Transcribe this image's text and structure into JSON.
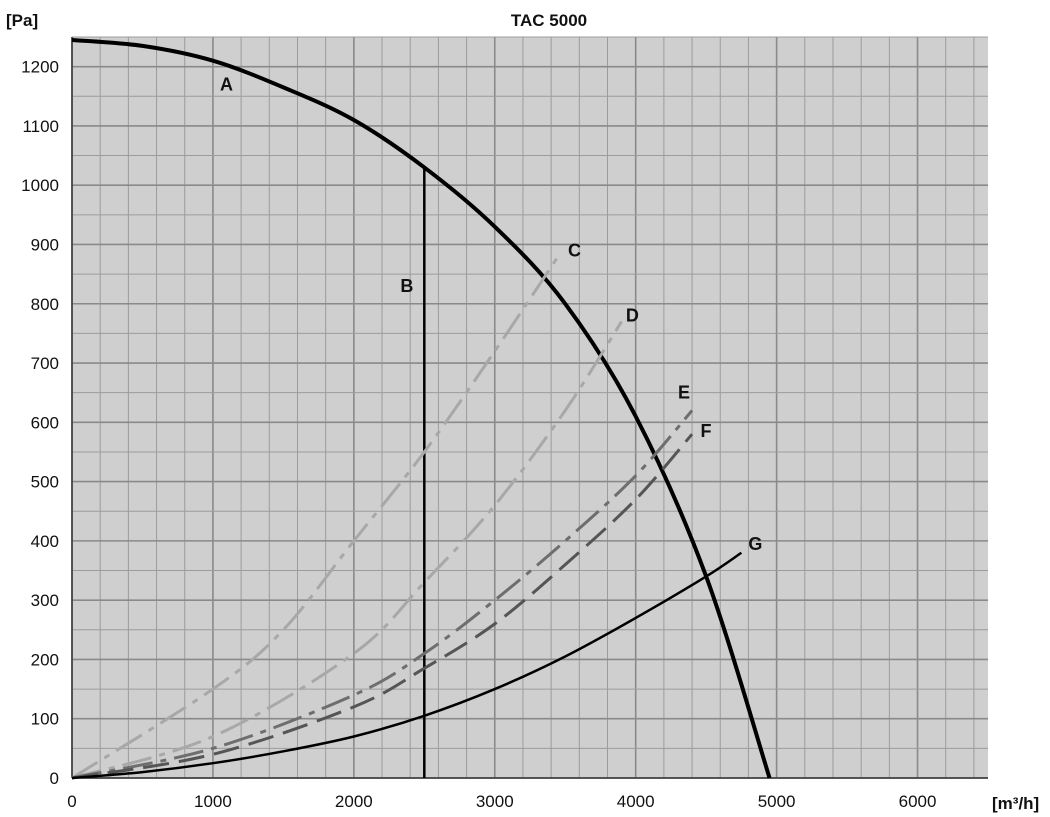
{
  "chart_data": {
    "type": "line",
    "title": "TAC 5000",
    "ylabel": "[Pa]",
    "xlabel": "[m³/h]",
    "xlim": [
      0,
      6500
    ],
    "ylim": [
      0,
      1250
    ],
    "x_ticks": [
      0,
      1000,
      2000,
      3000,
      4000,
      5000,
      6000
    ],
    "y_ticks": [
      0,
      100,
      200,
      300,
      400,
      500,
      600,
      700,
      800,
      900,
      1000,
      1100,
      1200
    ],
    "x_tick_labels": [
      "0",
      "1000",
      "2000",
      "3000",
      "4000",
      "5000",
      "6000"
    ],
    "y_tick_labels": [
      "0",
      "100",
      "200",
      "300",
      "400",
      "500",
      "600",
      "700",
      "800",
      "900",
      "1000",
      "1100",
      "1200"
    ],
    "grid": true,
    "grid_minor_x_step": 200,
    "grid_minor_y_step": 50,
    "background_color": "#cfcfcf",
    "series": [
      {
        "name": "A",
        "color": "#000000",
        "dash": "solid",
        "width": 4,
        "x": [
          0,
          500,
          1000,
          1500,
          2000,
          2500,
          3000,
          3500,
          4000,
          4500,
          4950
        ],
        "y": [
          1245,
          1235,
          1210,
          1165,
          1110,
          1030,
          930,
          800,
          610,
          340,
          0
        ]
      },
      {
        "name": "B",
        "color": "#000000",
        "dash": "solid",
        "width": 2.5,
        "x": [
          2500,
          2500
        ],
        "y": [
          0,
          1030
        ]
      },
      {
        "name": "C",
        "color": "#a8a8a8",
        "dash": "dashdot",
        "width": 3,
        "x": [
          0,
          1000,
          1500,
          2000,
          2500,
          3000,
          3450
        ],
        "y": [
          0,
          150,
          250,
          400,
          550,
          720,
          880
        ]
      },
      {
        "name": "D",
        "color": "#a8a8a8",
        "dash": "dashdot",
        "width": 3,
        "x": [
          0,
          1000,
          2000,
          2500,
          3000,
          3500,
          3900
        ],
        "y": [
          0,
          70,
          210,
          330,
          460,
          620,
          770
        ]
      },
      {
        "name": "E",
        "color": "#6e6e6e",
        "dash": "dashdot",
        "width": 3,
        "x": [
          0,
          1000,
          2000,
          2500,
          3000,
          3500,
          4000,
          4400
        ],
        "y": [
          0,
          50,
          140,
          210,
          300,
          400,
          510,
          620
        ]
      },
      {
        "name": "F",
        "color": "#555555",
        "dash": "dash",
        "width": 3,
        "x": [
          0,
          1000,
          2000,
          2500,
          3000,
          3500,
          4000,
          4400
        ],
        "y": [
          0,
          40,
          120,
          185,
          260,
          360,
          470,
          580
        ]
      },
      {
        "name": "G",
        "color": "#000000",
        "dash": "solid",
        "width": 2.5,
        "x": [
          0,
          500,
          1000,
          1500,
          2000,
          2500,
          3000,
          3500,
          4000,
          4500,
          4750
        ],
        "y": [
          0,
          10,
          25,
          45,
          70,
          105,
          150,
          205,
          270,
          340,
          380
        ]
      }
    ],
    "annotations": [
      {
        "text": "A",
        "x": 1050,
        "y": 1160
      },
      {
        "text": "B",
        "x": 2330,
        "y": 820
      },
      {
        "text": "C",
        "x": 3520,
        "y": 880
      },
      {
        "text": "D",
        "x": 3930,
        "y": 770
      },
      {
        "text": "E",
        "x": 4300,
        "y": 640
      },
      {
        "text": "F",
        "x": 4460,
        "y": 575
      },
      {
        "text": "G",
        "x": 4800,
        "y": 385
      }
    ]
  }
}
